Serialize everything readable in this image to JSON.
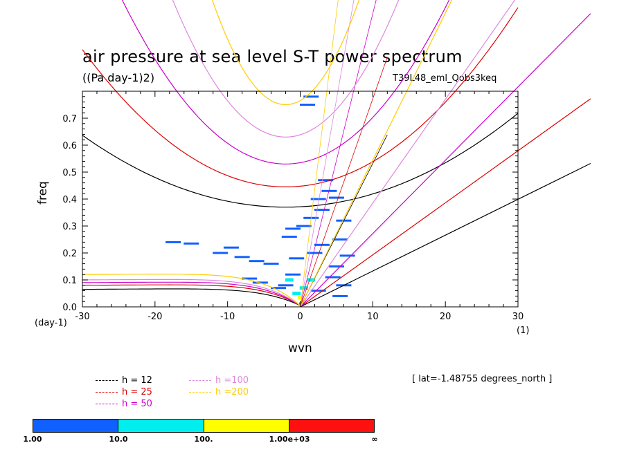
{
  "header": {
    "title": "air pressure at sea level S-T power spectrum",
    "units": "((Pa day-1)2)",
    "run_name": "T39L48_eml_Qobs3keq"
  },
  "chart_data": {
    "type": "heatmap",
    "title": "air pressure at sea level S-T power spectrum",
    "xlabel": "wvn",
    "ylabel": "freq",
    "x_unit_left": "(day-1)",
    "x_unit_right": "(1)",
    "xlim": [
      -30,
      30
    ],
    "ylim": [
      0,
      0.8
    ],
    "x_ticks": [
      -30,
      -20,
      -10,
      0,
      10,
      20,
      30
    ],
    "x_tick_labels": [
      "-30",
      "-20",
      "-10",
      "0",
      "10",
      "20",
      "30"
    ],
    "y_ticks": [
      0,
      0.1,
      0.2,
      0.3,
      0.4,
      0.5,
      0.6,
      0.7
    ],
    "y_tick_labels": [
      "0.0",
      "0.1",
      "0.2",
      "0.3",
      "0.4",
      "0.5",
      "0.6",
      "0.7"
    ],
    "dispersion_curves": [
      {
        "name": "h = 12",
        "h": 12,
        "color": "#000000",
        "kelvin_slope": 0.0133,
        "ig_min": 0.37,
        "ig_curv": 0.00034,
        "mrg_left": 0.065
      },
      {
        "name": "h = 25",
        "h": 25,
        "color": "#dd0000",
        "kelvin_slope": 0.0193,
        "ig_min": 0.445,
        "ig_curv": 0.00065,
        "mrg_left": 0.08
      },
      {
        "name": "h = 50",
        "h": 50,
        "color": "#cc00cc",
        "kelvin_slope": 0.0272,
        "ig_min": 0.53,
        "ig_curv": 0.0012,
        "mrg_left": 0.09
      },
      {
        "name": "h =100",
        "h": 100,
        "color": "#dd88dd",
        "kelvin_slope": 0.0385,
        "ig_min": 0.63,
        "ig_curv": 0.0021,
        "mrg_left": 0.1
      },
      {
        "name": "h =200",
        "h": 200,
        "color": "#ffcc00",
        "kelvin_slope": 0.0545,
        "ig_min": 0.75,
        "ig_curv": 0.0038,
        "mrg_left": 0.12
      }
    ],
    "color_bar": {
      "levels": [
        "1.00",
        "10.0",
        "100.",
        "1.00e+03",
        "∞"
      ],
      "colors": [
        "#1060ff",
        "#00eeee",
        "#ffff00",
        "#ff1010"
      ]
    },
    "power_patches": [
      {
        "x": -17.5,
        "f": 0.24,
        "level": 0
      },
      {
        "x": -15,
        "f": 0.235,
        "level": 0
      },
      {
        "x": -11,
        "f": 0.2,
        "level": 0
      },
      {
        "x": -9.5,
        "f": 0.22,
        "level": 0
      },
      {
        "x": -8,
        "f": 0.185,
        "level": 0
      },
      {
        "x": -6,
        "f": 0.17,
        "level": 0
      },
      {
        "x": -4,
        "f": 0.16,
        "level": 0
      },
      {
        "x": -7,
        "f": 0.105,
        "level": 0
      },
      {
        "x": -5.5,
        "f": 0.09,
        "level": 0
      },
      {
        "x": -3,
        "f": 0.07,
        "level": 0
      },
      {
        "x": -1.5,
        "f": 0.26,
        "level": 0
      },
      {
        "x": -1,
        "f": 0.29,
        "level": 0
      },
      {
        "x": 0.5,
        "f": 0.3,
        "level": 0
      },
      {
        "x": 1.5,
        "f": 0.33,
        "level": 0
      },
      {
        "x": 3,
        "f": 0.36,
        "level": 0
      },
      {
        "x": 2.5,
        "f": 0.4,
        "level": 0
      },
      {
        "x": 4,
        "f": 0.43,
        "level": 0
      },
      {
        "x": 3.5,
        "f": 0.47,
        "level": 0
      },
      {
        "x": 5,
        "f": 0.405,
        "level": 0
      },
      {
        "x": 6,
        "f": 0.32,
        "level": 0
      },
      {
        "x": 5.5,
        "f": 0.25,
        "level": 0
      },
      {
        "x": 6.5,
        "f": 0.19,
        "level": 0
      },
      {
        "x": 5,
        "f": 0.15,
        "level": 0
      },
      {
        "x": 4.5,
        "f": 0.11,
        "level": 0
      },
      {
        "x": 6,
        "f": 0.08,
        "level": 0
      },
      {
        "x": 5.5,
        "f": 0.04,
        "level": 0
      },
      {
        "x": 1.5,
        "f": 0.78,
        "level": 0
      },
      {
        "x": 1,
        "f": 0.75,
        "level": 0
      },
      {
        "x": -1,
        "f": 0.12,
        "level": 0
      },
      {
        "x": 2,
        "f": 0.2,
        "level": 0
      },
      {
        "x": 3,
        "f": 0.23,
        "level": 0
      },
      {
        "x": -2,
        "f": 0.08,
        "level": 0
      },
      {
        "x": 2.5,
        "f": 0.06,
        "level": 0
      },
      {
        "x": -0.5,
        "f": 0.18,
        "level": 0
      },
      {
        "x": -1.5,
        "f": 0.1,
        "level": 1
      },
      {
        "x": 0.5,
        "f": 0.07,
        "level": 1
      },
      {
        "x": -0.5,
        "f": 0.05,
        "level": 1
      },
      {
        "x": 1.5,
        "f": 0.1,
        "level": 1
      },
      {
        "x": 0,
        "f": 0.035,
        "level": 2
      },
      {
        "x": 0.5,
        "f": 0.02,
        "level": 2
      },
      {
        "x": 0.2,
        "f": 0.01,
        "level": 3
      }
    ]
  },
  "legend": [
    {
      "label": "h = 12",
      "color": "#000000"
    },
    {
      "label": "h = 25",
      "color": "#dd0000"
    },
    {
      "label": "h = 50",
      "color": "#cc00cc"
    },
    {
      "label": "h =100",
      "color": "#dd88dd"
    },
    {
      "label": "h =200",
      "color": "#ffcc00"
    }
  ],
  "info": {
    "lat_text": "[ lat=-1.48755 degrees_north ]"
  }
}
